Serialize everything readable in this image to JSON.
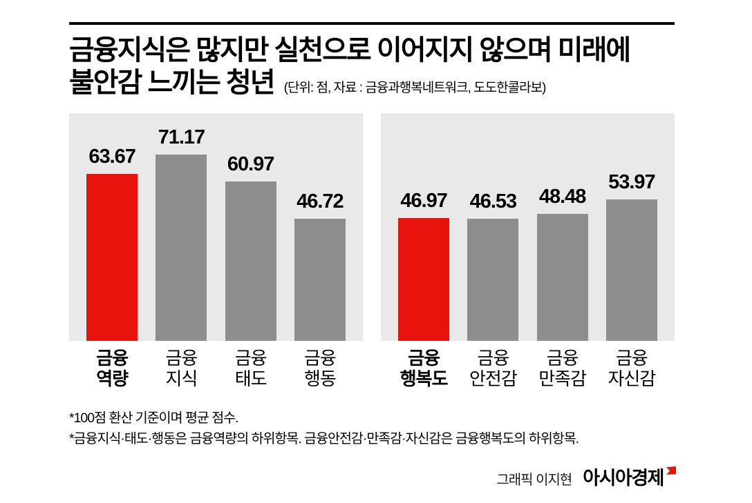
{
  "header": {
    "title_line1": "금융지식은 많지만 실천으로 이어지지 않으며 미래에",
    "title_line2": "불안감 느끼는 청년",
    "subtitle": "(단위: 점, 자료 : 금융과행복네트워크, 도도한콜라보)"
  },
  "colors": {
    "highlight": "#e8130b",
    "bar": "#8d8d8d",
    "panel_bg": "#e9e9e9"
  },
  "chart_data": [
    {
      "type": "bar",
      "categories": [
        "금융 역량",
        "금융 지식",
        "금융 태도",
        "금융 행동"
      ],
      "category_lines": [
        [
          "금융",
          "역량"
        ],
        [
          "금융",
          "지식"
        ],
        [
          "금융",
          "태도"
        ],
        [
          "금융",
          "행동"
        ]
      ],
      "values": [
        63.67,
        71.17,
        60.97,
        46.72
      ],
      "highlight_index": 0,
      "title": "",
      "xlabel": "",
      "ylabel": "점 (100점 환산 평균)",
      "ylim": [
        0,
        80
      ],
      "axis_visible": false,
      "grid": false,
      "legend": false
    },
    {
      "type": "bar",
      "categories": [
        "금융 행복도",
        "금융 안전감",
        "금융 만족감",
        "금융 자신감"
      ],
      "category_lines": [
        [
          "금융",
          "행복도"
        ],
        [
          "금융",
          "안전감"
        ],
        [
          "금융",
          "만족감"
        ],
        [
          "금융",
          "자신감"
        ]
      ],
      "values": [
        46.97,
        46.53,
        48.48,
        53.97
      ],
      "highlight_index": 0,
      "title": "",
      "xlabel": "",
      "ylabel": "점 (100점 환산 평균)",
      "ylim": [
        0,
        80
      ],
      "axis_visible": false,
      "grid": false,
      "legend": false
    }
  ],
  "footnotes": [
    "*100점 환산 기준이며 평균 점수.",
    "*금융지식·태도·행동은 금융역량의 하위항목. 금융안전감·만족감·자신감은 금융행복도의 하위항목."
  ],
  "credit": {
    "graphic_by": "그래픽 이지현",
    "brand": "아시아경제"
  }
}
